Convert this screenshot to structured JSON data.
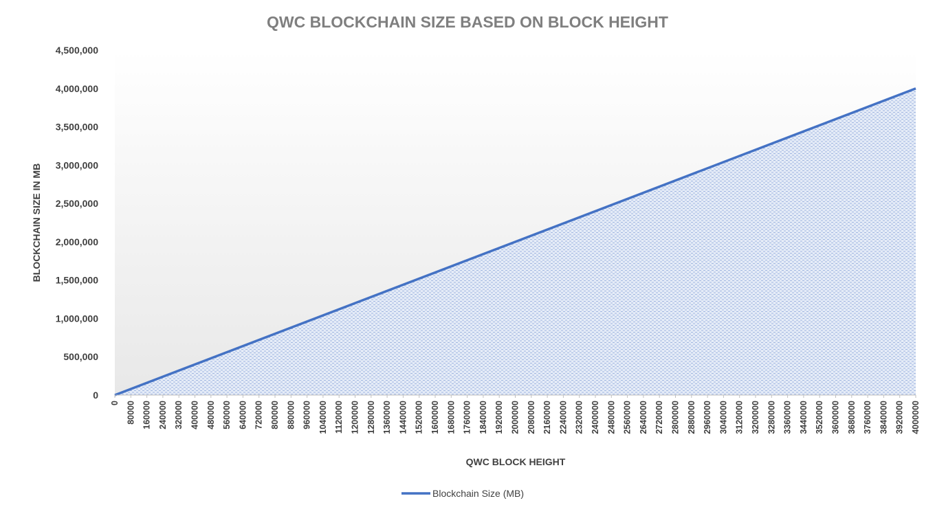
{
  "chart_data": {
    "type": "area",
    "title": "QWC BLOCKCHAIN SIZE BASED ON BLOCK HEIGHT",
    "xlabel": "QWC BLOCK HEIGHT",
    "ylabel": "BLOCKCHAIN SIZE IN MB",
    "xlim": [
      0,
      4000000
    ],
    "ylim": [
      0,
      4500000
    ],
    "yticks": [
      0,
      500000,
      1000000,
      1500000,
      2000000,
      2500000,
      3000000,
      3500000,
      4000000,
      4500000
    ],
    "ytick_labels": [
      "0",
      "500,000",
      "1,000,000",
      "1,500,000",
      "2,000,000",
      "2,500,000",
      "3,000,000",
      "3,500,000",
      "4,000,000",
      "4,500,000"
    ],
    "xtick_labels": [
      "0",
      "80000",
      "160000",
      "240000",
      "320000",
      "400000",
      "480000",
      "560000",
      "640000",
      "720000",
      "800000",
      "880000",
      "960000",
      "1040000",
      "1120000",
      "1200000",
      "1280000",
      "1360000",
      "1440000",
      "1520000",
      "1600000",
      "1680000",
      "1760000",
      "1840000",
      "1920000",
      "2000000",
      "2080000",
      "2160000",
      "2240000",
      "2320000",
      "2400000",
      "2480000",
      "2560000",
      "2640000",
      "2720000",
      "2800000",
      "2880000",
      "2960000",
      "3040000",
      "3120000",
      "3200000",
      "3280000",
      "3360000",
      "3440000",
      "3520000",
      "3600000",
      "3680000",
      "3760000",
      "3840000",
      "3920000",
      "4000000"
    ],
    "grid": false,
    "legend_position": "bottom",
    "series": [
      {
        "name": "Blockchain Size (MB)",
        "color": "#4472c4",
        "x": [
          0,
          4000000
        ],
        "values": [
          0,
          4000000
        ]
      }
    ]
  }
}
